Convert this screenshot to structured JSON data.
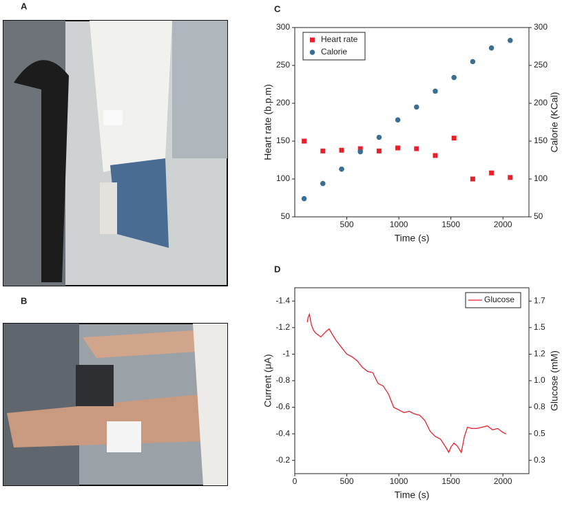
{
  "photo_panels": [
    "A",
    "B"
  ],
  "chart_data": [
    {
      "type": "scatter",
      "panel_label": "C",
      "xlabel": "Time (s)",
      "ylabel": "Heart rate (b.p.m)",
      "y2label": "Calorie (KCal)",
      "xlim": [
        0,
        2250
      ],
      "xticks": [
        500,
        1000,
        1500,
        2000
      ],
      "ylim": [
        50,
        300
      ],
      "yticks": [
        50,
        100,
        150,
        200,
        250,
        300
      ],
      "y2lim": [
        50,
        300
      ],
      "y2ticks": [
        50,
        100,
        150,
        200,
        250,
        300
      ],
      "legend": "upper left",
      "series": [
        {
          "name": "Heart rate",
          "color": "#e8202a",
          "marker": "square",
          "x": [
            90,
            270,
            450,
            630,
            810,
            990,
            1170,
            1350,
            1530,
            1710,
            1890,
            2070
          ],
          "values": [
            150,
            137,
            138,
            140,
            137,
            141,
            140,
            131,
            154,
            100,
            108,
            102
          ]
        },
        {
          "name": "Calorie",
          "color": "#3a6e93",
          "marker": "circle",
          "axis": "y2",
          "x": [
            90,
            270,
            450,
            630,
            810,
            990,
            1170,
            1350,
            1530,
            1710,
            1890,
            2070
          ],
          "values": [
            74,
            94,
            113,
            136,
            155,
            178,
            195,
            216,
            234,
            255,
            273,
            283
          ]
        }
      ]
    },
    {
      "type": "line",
      "panel_label": "D",
      "xlabel": "Time (s)",
      "ylabel": "Current (μA)",
      "y2label": "Glucose (mM)",
      "xlim": [
        0,
        2250
      ],
      "xticks": [
        0,
        500,
        1000,
        1500,
        2000
      ],
      "ylim": [
        -0.1,
        -1.5
      ],
      "yticks": [
        -1.4,
        -1.2,
        -1.0,
        -0.8,
        -0.6,
        -0.4,
        -0.2
      ],
      "y2lim": [
        0.183,
        1.817
      ],
      "y2ticks": [
        {
          "value": 1.7,
          "label": "1.7"
        },
        {
          "value": 1.467,
          "label": "1.5"
        },
        {
          "value": 1.233,
          "label": "1.2"
        },
        {
          "value": 1.0,
          "label": "1.0"
        },
        {
          "value": 0.767,
          "label": "0.8"
        },
        {
          "value": 0.533,
          "label": "0.5"
        },
        {
          "value": 0.3,
          "label": "0.3"
        }
      ],
      "legend": "upper right",
      "series": [
        {
          "name": "Glucose",
          "color": "#e8202a",
          "x": [
            120,
            130,
            140,
            160,
            180,
            200,
            250,
            300,
            330,
            360,
            400,
            450,
            500,
            550,
            600,
            650,
            700,
            750,
            800,
            850,
            900,
            950,
            1000,
            1050,
            1100,
            1150,
            1200,
            1250,
            1300,
            1350,
            1400,
            1450,
            1480,
            1500,
            1530,
            1560,
            1600,
            1630,
            1660,
            1700,
            1750,
            1800,
            1850,
            1900,
            1950,
            2000,
            2030
          ],
          "values": [
            -1.24,
            -1.28,
            -1.3,
            -1.22,
            -1.18,
            -1.16,
            -1.13,
            -1.17,
            -1.19,
            -1.15,
            -1.1,
            -1.05,
            -1.0,
            -0.98,
            -0.95,
            -0.9,
            -0.87,
            -0.86,
            -0.78,
            -0.76,
            -0.7,
            -0.6,
            -0.58,
            -0.56,
            -0.57,
            -0.55,
            -0.54,
            -0.5,
            -0.42,
            -0.38,
            -0.36,
            -0.3,
            -0.26,
            -0.3,
            -0.33,
            -0.31,
            -0.26,
            -0.38,
            -0.45,
            -0.44,
            -0.44,
            -0.45,
            -0.46,
            -0.43,
            -0.44,
            -0.41,
            -0.4
          ]
        }
      ]
    }
  ]
}
